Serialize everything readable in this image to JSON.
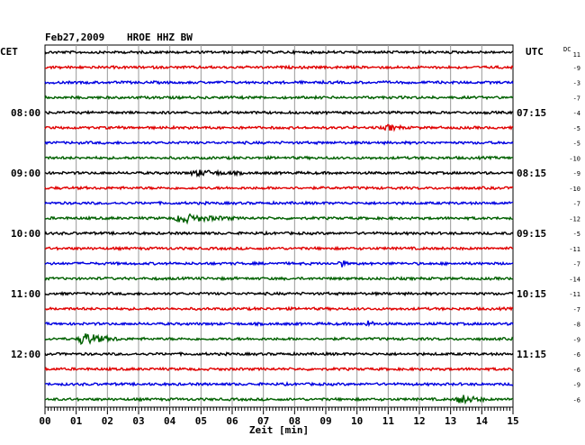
{
  "header": {
    "date": "Feb27,2009",
    "station": "HROE HHZ BW"
  },
  "left_axis_title": "CET",
  "right_axis_title": "UTC",
  "dc_title": "DC",
  "chart_data": {
    "type": "line",
    "title": "HROE HHZ BW",
    "xlabel": "Zeit [min]",
    "xlim": [
      0,
      15
    ],
    "x_ticks": [
      "00",
      "01",
      "02",
      "03",
      "04",
      "05",
      "06",
      "07",
      "08",
      "09",
      "10",
      "11",
      "12",
      "13",
      "14",
      "15"
    ],
    "grid": true,
    "trace_colors": [
      "#000000",
      "#e00000",
      "#0000e0",
      "#006000"
    ],
    "left_hour_labels": [
      "08:00",
      "09:00",
      "10:00",
      "11:00",
      "12:00"
    ],
    "right_hour_labels": [
      "07:15",
      "08:15",
      "09:15",
      "10:15",
      "11:15"
    ],
    "traces": [
      {
        "dc": "11"
      },
      {
        "dc": "-9"
      },
      {
        "dc": "-3"
      },
      {
        "dc": "-7"
      },
      {
        "dc": "-4"
      },
      {
        "dc": "-5"
      },
      {
        "dc": "-5"
      },
      {
        "dc": "-10"
      },
      {
        "dc": "-9"
      },
      {
        "dc": "-10"
      },
      {
        "dc": "-7"
      },
      {
        "dc": "-12"
      },
      {
        "dc": "-5"
      },
      {
        "dc": "-11"
      },
      {
        "dc": "-7"
      },
      {
        "dc": "-14"
      },
      {
        "dc": "-11"
      },
      {
        "dc": "-7"
      },
      {
        "dc": "-8"
      },
      {
        "dc": "-9"
      },
      {
        "dc": "-6"
      },
      {
        "dc": "-6"
      },
      {
        "dc": "-9"
      },
      {
        "dc": "-6"
      }
    ],
    "events": [
      {
        "trace": 8,
        "minute": 4.8,
        "amplitude": 3,
        "duration": 1.6
      },
      {
        "trace": 11,
        "minute": 4.3,
        "amplitude": 5,
        "duration": 1.8
      },
      {
        "trace": 19,
        "minute": 1.2,
        "amplitude": 7,
        "duration": 1.2
      },
      {
        "trace": 23,
        "minute": 13.3,
        "amplitude": 5,
        "duration": 0.9
      },
      {
        "trace": 5,
        "minute": 11.0,
        "amplitude": 3,
        "duration": 0.6
      },
      {
        "trace": 14,
        "minute": 9.5,
        "amplitude": 4,
        "duration": 0.2
      },
      {
        "trace": 18,
        "minute": 10.4,
        "amplitude": 4,
        "duration": 0.2
      }
    ]
  }
}
